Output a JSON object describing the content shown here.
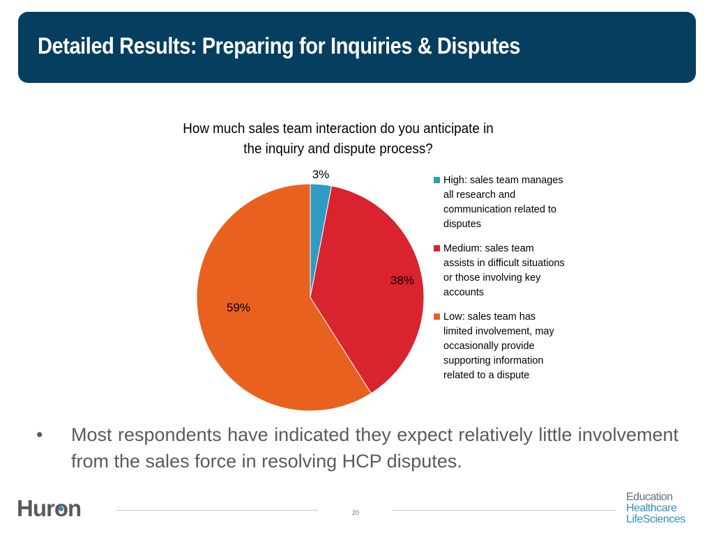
{
  "header": {
    "title": "Detailed Results: Preparing for Inquiries & Disputes"
  },
  "chart_data": {
    "type": "pie",
    "title": "How much sales team interaction do you anticipate in the inquiry and dispute process?",
    "title_lines": [
      "How much sales team interaction do you anticipate in",
      "the inquiry and dispute process?"
    ],
    "slices": [
      {
        "name": "High: sales team manages all research and communication related to disputes",
        "value": 3,
        "label": "3%",
        "color": "#2e9bc2",
        "legend_lines": [
          "High: sales team manages",
          "all research and",
          "communication related to",
          "disputes"
        ]
      },
      {
        "name": "Medium: sales team assists in difficult situations or those involving key accounts",
        "value": 38,
        "label": "38%",
        "color": "#d9232e",
        "legend_lines": [
          "Medium: sales team",
          "assists in difficult situations",
          "or those involving key",
          "accounts"
        ]
      },
      {
        "name": "Low: sales team has limited involvement, may occasionally provide supporting information related to a dispute",
        "value": 59,
        "label": "59%",
        "color": "#e8611f",
        "legend_lines": [
          "Low: sales team has",
          "limited involvement, may",
          "occasionally provide",
          "supporting information",
          "related to a dispute"
        ]
      }
    ],
    "start_angle": "12 o'clock",
    "direction": "clockwise",
    "legend_position": "right"
  },
  "bullets": [
    "Most respondents have indicated they expect relatively little involvement from the sales force in resolving HCP disputes."
  ],
  "footer": {
    "logo": "Huron",
    "page_number": "20",
    "sectors": [
      "Education",
      "Healthcare",
      "LifeSciences"
    ]
  }
}
